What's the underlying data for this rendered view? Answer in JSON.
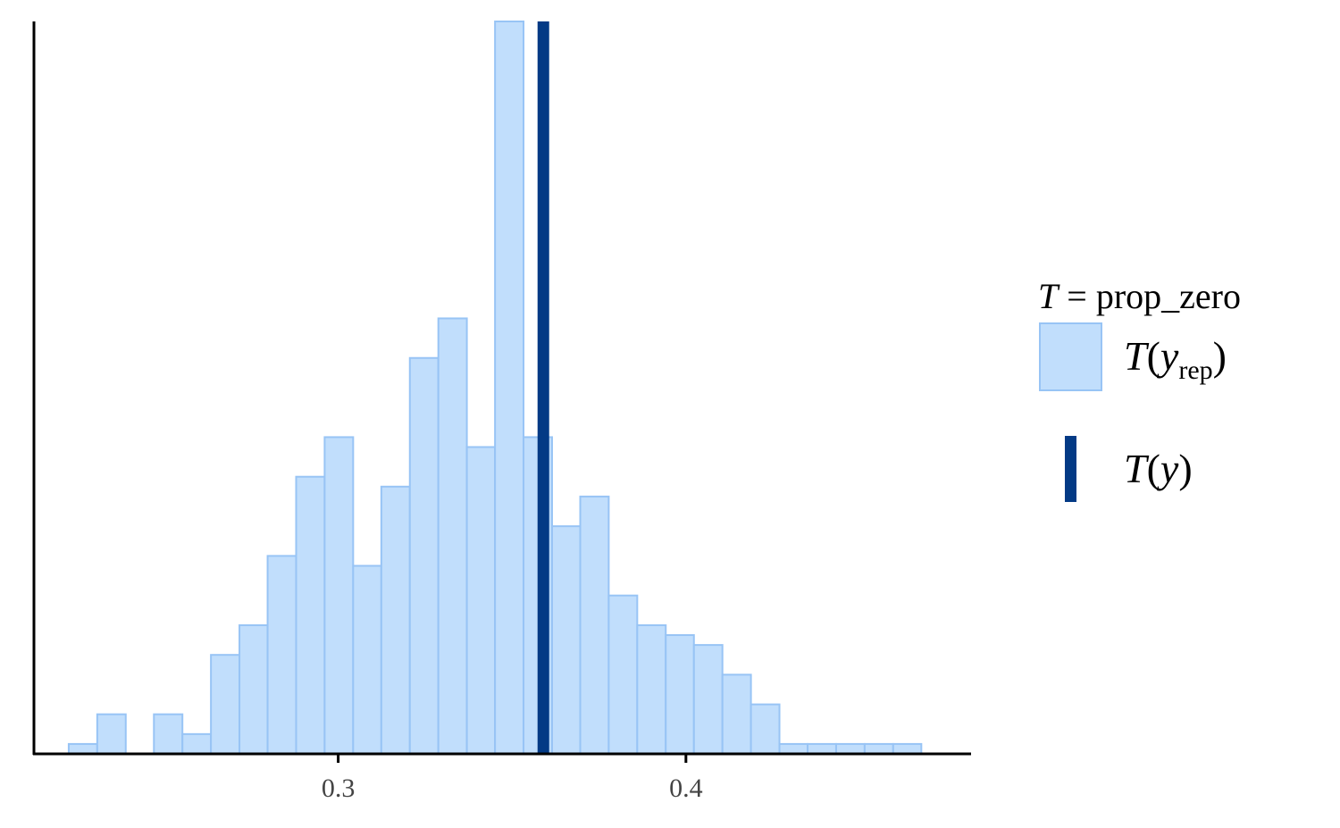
{
  "chart_data": {
    "type": "bar",
    "statistic": "prop_zero",
    "bin_edges": [
      0.2225,
      0.2307,
      0.2389,
      0.247,
      0.2552,
      0.2634,
      0.2716,
      0.2797,
      0.2879,
      0.2961,
      0.3043,
      0.3124,
      0.3206,
      0.3288,
      0.337,
      0.3451,
      0.3533,
      0.3615,
      0.3696,
      0.3778,
      0.386,
      0.3942,
      0.4023,
      0.4105,
      0.4187,
      0.4269,
      0.435,
      0.4432,
      0.4514,
      0.4596,
      0.4677
    ],
    "counts": [
      1,
      4,
      0,
      4,
      2,
      10,
      13,
      20,
      28,
      32,
      19,
      27,
      40,
      44,
      31,
      74,
      32,
      23,
      26,
      16,
      13,
      12,
      11,
      8,
      5,
      1,
      1,
      1,
      1,
      1
    ],
    "observed_value": 0.359,
    "xlim": [
      0.2125,
      0.482
    ],
    "ylim": [
      0,
      74
    ],
    "x_ticks": [
      0.3,
      0.4
    ],
    "x_tick_labels": [
      "0.3",
      "0.4"
    ],
    "legend": {
      "title_var": "T",
      "title_eq": "=",
      "title_stat": "prop_zero",
      "rep_fn": "T",
      "rep_var": "y",
      "rep_sub": "rep",
      "obs_fn": "T",
      "obs_var": "y"
    },
    "colors": {
      "bar_fill": "#c1defc",
      "bar_edge": "#98c4f5",
      "observed_line": "#033a85",
      "axis": "#000000"
    }
  }
}
